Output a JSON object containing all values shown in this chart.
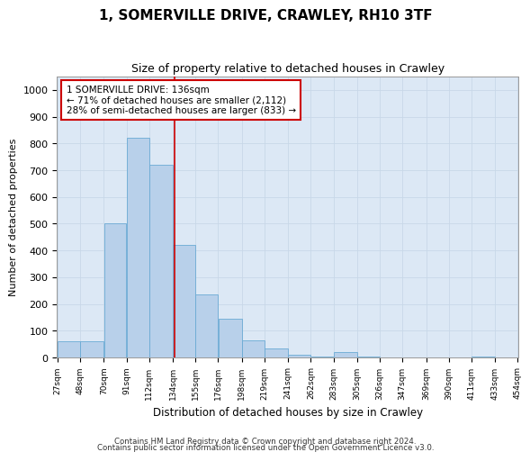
{
  "title1": "1, SOMERVILLE DRIVE, CRAWLEY, RH10 3TF",
  "title2": "Size of property relative to detached houses in Crawley",
  "xlabel": "Distribution of detached houses by size in Crawley",
  "ylabel": "Number of detached properties",
  "bar_left_edges": [
    27,
    48,
    70,
    91,
    112,
    134,
    155,
    176,
    198,
    219,
    241,
    262,
    283,
    305,
    326,
    347,
    369,
    390,
    411,
    433
  ],
  "bar_widths": [
    21,
    22,
    21,
    21,
    22,
    21,
    21,
    22,
    21,
    22,
    21,
    21,
    22,
    21,
    21,
    22,
    21,
    21,
    22,
    21
  ],
  "bar_heights": [
    60,
    60,
    500,
    820,
    720,
    420,
    235,
    145,
    65,
    35,
    10,
    5,
    20,
    5,
    0,
    0,
    0,
    0,
    5,
    0
  ],
  "tick_labels": [
    "27sqm",
    "48sqm",
    "70sqm",
    "91sqm",
    "112sqm",
    "134sqm",
    "155sqm",
    "176sqm",
    "198sqm",
    "219sqm",
    "241sqm",
    "262sqm",
    "283sqm",
    "305sqm",
    "326sqm",
    "347sqm",
    "369sqm",
    "390sqm",
    "411sqm",
    "433sqm",
    "454sqm"
  ],
  "bar_color": "#b8d0ea",
  "bar_edge_color": "#6aaad4",
  "grid_color": "#c8d8e8",
  "bg_color": "#dce8f5",
  "property_line_x": 136,
  "property_line_color": "#cc0000",
  "annotation_text_line1": "1 SOMERVILLE DRIVE: 136sqm",
  "annotation_text_line2": "← 71% of detached houses are smaller (2,112)",
  "annotation_text_line3": "28% of semi-detached houses are larger (833) →",
  "annotation_box_color": "#cc0000",
  "ylim": [
    0,
    1050
  ],
  "yticks": [
    0,
    100,
    200,
    300,
    400,
    500,
    600,
    700,
    800,
    900,
    1000
  ],
  "footer1": "Contains HM Land Registry data © Crown copyright and database right 2024.",
  "footer2": "Contains public sector information licensed under the Open Government Licence v3.0."
}
